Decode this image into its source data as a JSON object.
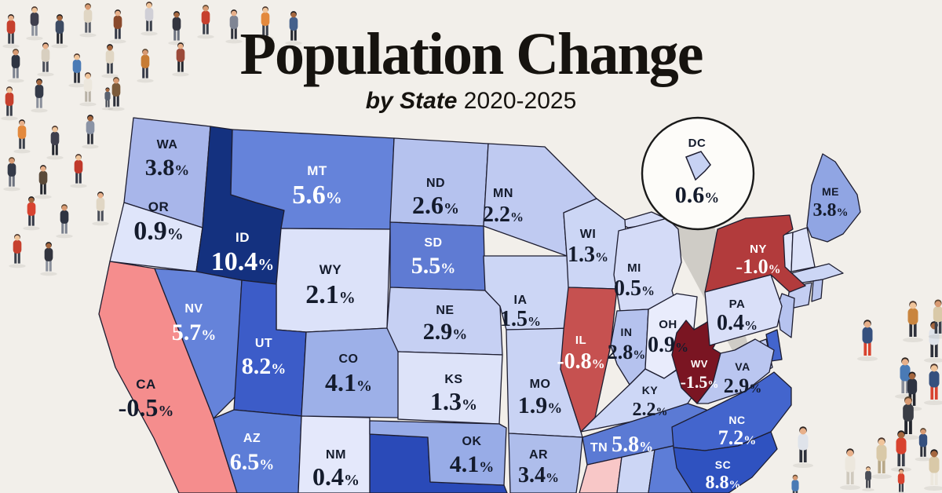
{
  "title": "Population Change",
  "subtitle": {
    "emphasis": "by State",
    "period": "2020-2025"
  },
  "unit": "%",
  "colors": {
    "background": "#f2efea",
    "state_border": "#1d1d30",
    "dark_label": "#141b2c",
    "light_label": "#ffffff",
    "callout_fill": "#fdfcf9",
    "callout_border": "#1a1a1a",
    "callout_shadow": "#cbc8c2",
    "dc_shape_fill": "#c7d2f3"
  },
  "map": {
    "states": [
      {
        "id": "WA",
        "abbr": "WA",
        "value": "3.8",
        "fill": "#a8b6ea",
        "text": "dark"
      },
      {
        "id": "OR",
        "abbr": "OR",
        "value": "0.9",
        "fill": "#dfe5fa",
        "text": "dark"
      },
      {
        "id": "CA",
        "abbr": "CA",
        "value": "-0.5",
        "fill": "#f58d8d",
        "text": "dark"
      },
      {
        "id": "ID",
        "abbr": "ID",
        "value": "10.4",
        "fill": "#14317f",
        "text": "light"
      },
      {
        "id": "NV",
        "abbr": "NV",
        "value": "5.7",
        "fill": "#6583da",
        "text": "light"
      },
      {
        "id": "MT",
        "abbr": "MT",
        "value": "5.6",
        "fill": "#6583da",
        "text": "light"
      },
      {
        "id": "WY",
        "abbr": "WY",
        "value": "2.1",
        "fill": "#dce2f9",
        "text": "dark"
      },
      {
        "id": "UT",
        "abbr": "UT",
        "value": "8.2",
        "fill": "#3c5cc8",
        "text": "light"
      },
      {
        "id": "CO",
        "abbr": "CO",
        "value": "4.1",
        "fill": "#9db0e8",
        "text": "dark"
      },
      {
        "id": "AZ",
        "abbr": "AZ",
        "value": "6.5",
        "fill": "#5d7dd7",
        "text": "light"
      },
      {
        "id": "NM",
        "abbr": "NM",
        "value": "0.4",
        "fill": "#e4e8fb",
        "text": "dark"
      },
      {
        "id": "ND",
        "abbr": "ND",
        "value": "2.6",
        "fill": "#b5c2ee",
        "text": "dark"
      },
      {
        "id": "SD",
        "abbr": "SD",
        "value": "5.5",
        "fill": "#5f7bd3",
        "text": "light"
      },
      {
        "id": "NE",
        "abbr": "NE",
        "value": "2.9",
        "fill": "#c6d0f3",
        "text": "dark"
      },
      {
        "id": "KS",
        "abbr": "KS",
        "value": "1.3",
        "fill": "#dde3f9",
        "text": "dark"
      },
      {
        "id": "OK",
        "abbr": "OK",
        "value": "4.1",
        "fill": "#98ace7",
        "text": "dark"
      },
      {
        "id": "MN",
        "abbr": "MN",
        "value": "2.2",
        "fill": "#bfcaf1",
        "text": "dark"
      },
      {
        "id": "IA",
        "abbr": "IA",
        "value": "1.5",
        "fill": "#ccd6f5",
        "text": "dark"
      },
      {
        "id": "MO",
        "abbr": "MO",
        "value": "1.9",
        "fill": "#c9d3f4",
        "text": "dark"
      },
      {
        "id": "AR",
        "abbr": "AR",
        "value": "3.4",
        "fill": "#aebdeb",
        "text": "dark"
      },
      {
        "id": "WI",
        "abbr": "WI",
        "value": "1.3",
        "fill": "#ccd6f5",
        "text": "dark"
      },
      {
        "id": "IL",
        "abbr": "IL",
        "value": "-0.8",
        "fill": "#c65150",
        "text": "light"
      },
      {
        "id": "MI",
        "abbr": "MI",
        "value": "0.5",
        "fill": "#d4dbf7",
        "text": "dark"
      },
      {
        "id": "IN",
        "abbr": "IN",
        "value": "2.8",
        "fill": "#b5c2ee",
        "text": "dark"
      },
      {
        "id": "OH",
        "abbr": "OH",
        "value": "0.9",
        "fill": "#e9ecfc",
        "text": "dark"
      },
      {
        "id": "KY",
        "abbr": "KY",
        "value": "2.2",
        "fill": "#cdd7f6",
        "text": "dark"
      },
      {
        "id": "TN",
        "abbr": "TN",
        "value": "5.8",
        "fill": "#5b7ad4",
        "text": "light",
        "inline": true
      },
      {
        "id": "WV",
        "abbr": "WV",
        "value": "-1.5",
        "fill": "#7a1522",
        "text": "light"
      },
      {
        "id": "VA",
        "abbr": "VA",
        "value": "2.9",
        "fill": "#bac6f0",
        "text": "dark"
      },
      {
        "id": "NC",
        "abbr": "NC",
        "value": "7.2",
        "fill": "#4365cd",
        "text": "light"
      },
      {
        "id": "SC",
        "abbr": "SC",
        "value": "8.8",
        "fill": "#2f52c0",
        "text": "light"
      },
      {
        "id": "PA",
        "abbr": "PA",
        "value": "0.4",
        "fill": "#d9dff8",
        "text": "dark"
      },
      {
        "id": "NY",
        "abbr": "NY",
        "value": "-1.0",
        "fill": "#b23b3c",
        "text": "light"
      },
      {
        "id": "ME",
        "abbr": "ME",
        "value": "3.8",
        "fill": "#90a5e3",
        "text": "dark"
      }
    ],
    "unlabeled_states": [
      {
        "id": "MIUP",
        "fill": "#d4dbf7"
      },
      {
        "id": "TX",
        "fill": "#2a4ab8"
      },
      {
        "id": "MS",
        "fill": "#f8c7c7"
      },
      {
        "id": "AL",
        "fill": "#ccd6f5"
      },
      {
        "id": "GA",
        "fill": "#5d7dd7"
      },
      {
        "id": "VT",
        "fill": "#e2e7fa"
      },
      {
        "id": "NH",
        "fill": "#dde3f9"
      },
      {
        "id": "MA",
        "fill": "#ccd6f5"
      },
      {
        "id": "CT",
        "fill": "#c4cef2"
      },
      {
        "id": "RI",
        "fill": "#b8c4ee"
      },
      {
        "id": "NJ",
        "fill": "#b6c3ef"
      },
      {
        "id": "DE",
        "fill": "#4365cd"
      },
      {
        "id": "MD",
        "fill": "#c0cbf1"
      }
    ],
    "dc_callout": {
      "abbr": "DC",
      "value": "0.6"
    }
  }
}
